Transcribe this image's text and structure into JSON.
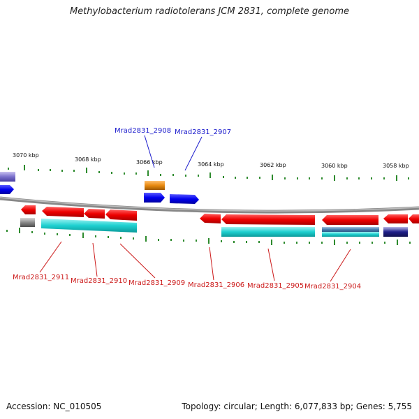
{
  "title": "Methylobacterium radiotolerans JCM 2831, complete genome",
  "footer": {
    "accession": "Accession: NC_010505",
    "summary": "Topology: circular; Length: 6,077,833 bp; Genes: 5,755"
  },
  "scale": {
    "ticks": [
      "3070 kbp",
      "3068 kbp",
      "3066 kbp",
      "3064 kbp",
      "3062 kbp",
      "3060 kbp",
      "3058 kbp"
    ]
  },
  "gene_labels": {
    "top": [
      "Mrad2831_2908",
      "Mrad2831_2907"
    ],
    "bottom": [
      "Mrad2831_2911",
      "Mrad2831_2910",
      "Mrad2831_2909",
      "Mrad2831_2906",
      "Mrad2831_2905",
      "Mrad2831_2904"
    ]
  },
  "colors": {
    "forward_gene": "#1a1aff",
    "reverse_gene": "#ff1a1a",
    "cds_cyan": "#22d3d3",
    "orange": "#e88a10",
    "backbone": "#888888",
    "tick_green": "#2e8b2e",
    "label_blue": "#1a1acc",
    "label_red": "#cc1a1a"
  }
}
